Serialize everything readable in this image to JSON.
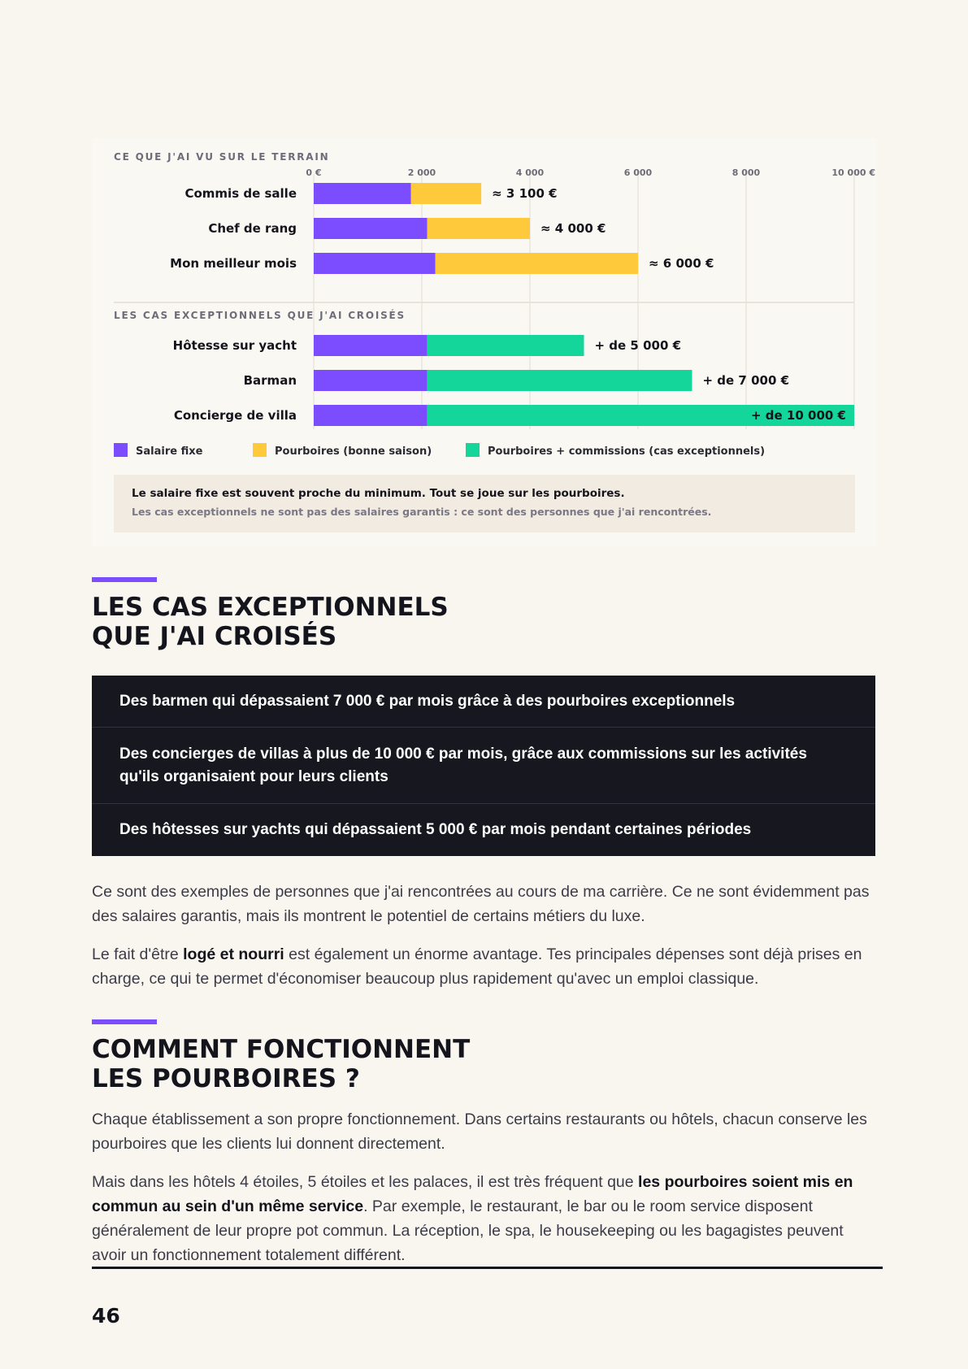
{
  "chart_data": {
    "type": "bar",
    "orientation": "horizontal",
    "stacked": true,
    "xlim": [
      0,
      10000
    ],
    "x_ticks": [
      "0 €",
      "2 000",
      "4 000",
      "6 000",
      "8 000",
      "10 000 €"
    ],
    "x_tick_values": [
      0,
      2000,
      4000,
      6000,
      8000,
      10000
    ],
    "grid": true,
    "colors": {
      "salaire": "#7b4dff",
      "pourboires": "#ffc93c",
      "commissions": "#14d69b"
    },
    "groups": [
      {
        "title": "CE QUE J'AI VU SUR LE TERRAIN",
        "rows": [
          {
            "label": "Commis de salle",
            "fixe": 1800,
            "extra": 1300,
            "extra_type": "pourboires",
            "value_label": "≈ 3 100 €"
          },
          {
            "label": "Chef de rang",
            "fixe": 2100,
            "extra": 1900,
            "extra_type": "pourboires",
            "value_label": "≈ 4 000 €"
          },
          {
            "label": "Mon meilleur mois",
            "fixe": 2250,
            "extra": 3750,
            "extra_type": "pourboires",
            "value_label": "≈ 6 000 €"
          }
        ]
      },
      {
        "title": "LES CAS EXCEPTIONNELS QUE J'AI CROISÉS",
        "rows": [
          {
            "label": "Hôtesse sur yacht",
            "fixe": 2100,
            "extra": 2900,
            "extra_type": "commissions",
            "value_label": "+ de 5 000 €"
          },
          {
            "label": "Barman",
            "fixe": 2100,
            "extra": 4900,
            "extra_type": "commissions",
            "value_label": "+ de 7 000 €"
          },
          {
            "label": "Concierge de villa",
            "fixe": 2100,
            "extra": 7900,
            "extra_type": "commissions",
            "value_label": "+ de 10 000 €"
          }
        ]
      }
    ],
    "legend": [
      {
        "key": "salaire",
        "label": "Salaire fixe"
      },
      {
        "key": "pourboires",
        "label": "Pourboires (bonne saison)"
      },
      {
        "key": "commissions",
        "label": "Pourboires + commissions (cas exceptionnels)"
      }
    ],
    "legend_position": "bottom",
    "note_main": "Le salaire fixe est souvent proche du minimum. Tout se joue sur les pourboires.",
    "note_sub": "Les cas exceptionnels ne sont pas des salaires garantis : ce sont des personnes que j'ai rencontrées."
  },
  "section1": {
    "title_line1": "LES CAS EXCEPTIONNELS",
    "title_line2": "QUE J'AI CROISÉS",
    "cases": [
      "Des barmen qui dépassaient 7 000 € par mois grâce à des pourboires exceptionnels",
      "Des concierges de villas à plus de 10 000 € par mois, grâce aux commissions sur les activités qu'ils organisaient pour leurs clients",
      "Des hôtesses sur yachts qui dépassaient 5 000 € par mois pendant certaines périodes"
    ],
    "p1": "Ce sont des exemples de personnes que j'ai rencontrées au cours de ma carrière. Ce ne sont évidemment pas des salaires garantis, mais ils montrent le potentiel de certains métiers du luxe.",
    "p2_a": "Le fait d'être ",
    "p2_b": "logé et nourri",
    "p2_c": " est également un énorme avantage. Tes principales dépenses sont déjà prises en charge, ce qui te permet d'économiser beaucoup plus rapidement qu'avec un emploi classique."
  },
  "section2": {
    "title_line1": "COMMENT FONCTIONNENT",
    "title_line2": "LES POURBOIRES ?",
    "p1": "Chaque établissement a son propre fonctionnement. Dans certains restaurants ou hôtels, chacun conserve les pourboires que les clients lui donnent directement.",
    "p2_a": "Mais dans les hôtels 4 étoiles, 5 étoiles et les palaces, il est très fréquent que ",
    "p2_b": "les pourboires soient mis en commun au sein d'un même service",
    "p2_c": ". Par exemple, le restaurant, le bar ou le room service disposent généralement de leur propre pot commun. La réception, le spa, le housekeeping ou les bagagistes peuvent avoir un fonctionnement totalement différent."
  },
  "page_number": "46"
}
